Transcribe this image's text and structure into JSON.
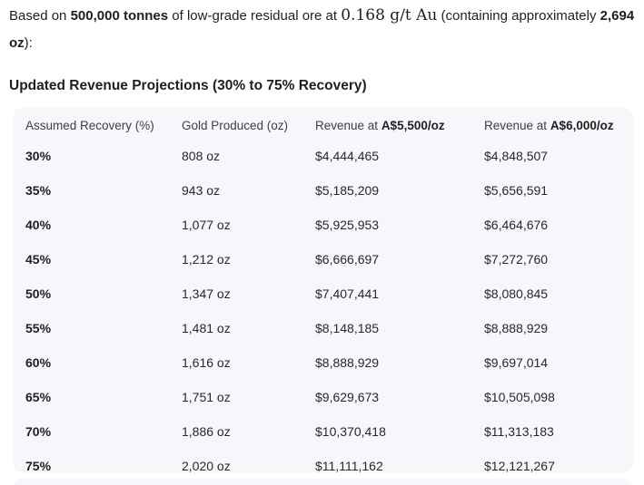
{
  "page": {
    "background": "#ffffff",
    "text_color": "#1f1f1f",
    "table_bg": "#f6f7fa"
  },
  "intro": {
    "part1": "Based on ",
    "bold1": "500,000 tonnes",
    "part2": " of low-grade residual ore at ",
    "math": "0.168 g/t Au",
    "part3": " (containing approximately ",
    "bold2": "2,694 oz",
    "part4": "):"
  },
  "section_title": "Updated Revenue Projections (30% to 75% Recovery)",
  "table": {
    "headers": [
      {
        "prefix": "Assumed Recovery (%)",
        "bold": ""
      },
      {
        "prefix": "Gold Produced (oz)",
        "bold": ""
      },
      {
        "prefix": "Revenue at ",
        "bold": "A$5,500/oz"
      },
      {
        "prefix": "Revenue at ",
        "bold": "A$6,000/oz"
      }
    ],
    "rows": [
      {
        "recovery": "30%",
        "gold": "808 oz",
        "rev_5500": "$4,444,465",
        "rev_6000": "$4,848,507"
      },
      {
        "recovery": "35%",
        "gold": "943 oz",
        "rev_5500": "$5,185,209",
        "rev_6000": "$5,656,591"
      },
      {
        "recovery": "40%",
        "gold": "1,077 oz",
        "rev_5500": "$5,925,953",
        "rev_6000": "$6,464,676"
      },
      {
        "recovery": "45%",
        "gold": "1,212 oz",
        "rev_5500": "$6,666,697",
        "rev_6000": "$7,272,760"
      },
      {
        "recovery": "50%",
        "gold": "1,347 oz",
        "rev_5500": "$7,407,441",
        "rev_6000": "$8,080,845"
      },
      {
        "recovery": "55%",
        "gold": "1,481 oz",
        "rev_5500": "$8,148,185",
        "rev_6000": "$8,888,929"
      },
      {
        "recovery": "60%",
        "gold": "1,616 oz",
        "rev_5500": "$8,888,929",
        "rev_6000": "$9,697,014"
      },
      {
        "recovery": "65%",
        "gold": "1,751 oz",
        "rev_5500": "$9,629,673",
        "rev_6000": "$10,505,098"
      },
      {
        "recovery": "70%",
        "gold": "1,886 oz",
        "rev_5500": "$10,370,418",
        "rev_6000": "$11,313,183"
      },
      {
        "recovery": "75%",
        "gold": "2,020 oz",
        "rev_5500": "$11,111,162",
        "rev_6000": "$12,121,267"
      }
    ]
  }
}
